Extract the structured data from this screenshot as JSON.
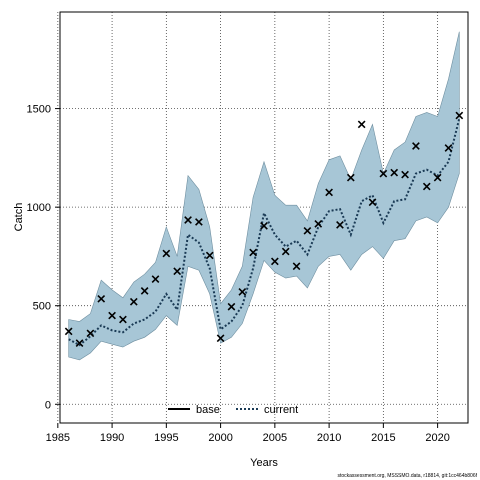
{
  "chart_data": {
    "type": "line",
    "xlabel": "Years",
    "ylabel": "Catch",
    "xlim": [
      1985.2,
      2022.8
    ],
    "ylim": [
      -95,
      1990
    ],
    "xticks": [
      1985,
      1990,
      1995,
      2000,
      2005,
      2010,
      2015,
      2020
    ],
    "yticks": [
      0,
      500,
      1000,
      1500
    ],
    "grid": true,
    "legend_position": "bottom",
    "colors": {
      "band": "#a7c6d6",
      "band_edge": "#6f8fa0",
      "current": "#1a3a55",
      "marker": "#000000"
    },
    "years": [
      1986,
      1987,
      1988,
      1989,
      1990,
      1991,
      1992,
      1993,
      1994,
      1995,
      1996,
      1997,
      1998,
      1999,
      2000,
      2001,
      2002,
      2003,
      2004,
      2005,
      2006,
      2007,
      2008,
      2009,
      2010,
      2011,
      2012,
      2013,
      2014,
      2015,
      2016,
      2017,
      2018,
      2019,
      2020,
      2021,
      2022
    ],
    "series": [
      {
        "name": "base",
        "style": "solid",
        "values": [
          330,
          300,
          345,
          400,
          375,
          365,
          410,
          430,
          470,
          560,
          480,
          860,
          820,
          690,
          380,
          420,
          500,
          690,
          870,
          760,
          730,
          730,
          650,
          820,
          890,
          920,
          850,
          930,
          1000,
          870,
          1010,
          1020,
          1140,
          1130,
          1060,
          1150,
          1450
        ]
      },
      {
        "name": "current",
        "style": "dotted",
        "values": [
          330,
          300,
          345,
          400,
          375,
          365,
          410,
          430,
          470,
          560,
          480,
          860,
          820,
          690,
          380,
          420,
          500,
          690,
          970,
          860,
          800,
          830,
          760,
          900,
          980,
          990,
          860,
          1030,
          1060,
          920,
          1030,
          1040,
          1170,
          1190,
          1160,
          1230,
          1450
        ]
      }
    ],
    "band_upper": [
      430,
      420,
      460,
      630,
      580,
      540,
      620,
      660,
      720,
      900,
      750,
      1160,
      1090,
      900,
      510,
      580,
      700,
      1050,
      1230,
      1060,
      1010,
      1010,
      930,
      1120,
      1240,
      1260,
      1140,
      1290,
      1420,
      1170,
      1290,
      1330,
      1460,
      1480,
      1460,
      1650,
      1890
    ],
    "band_lower": [
      240,
      225,
      260,
      320,
      305,
      290,
      320,
      340,
      380,
      450,
      400,
      700,
      680,
      560,
      310,
      340,
      410,
      560,
      730,
      670,
      640,
      650,
      590,
      700,
      750,
      760,
      680,
      760,
      800,
      740,
      830,
      840,
      930,
      950,
      920,
      1000,
      1170
    ],
    "observed": [
      370,
      310,
      360,
      535,
      450,
      430,
      520,
      575,
      635,
      765,
      675,
      935,
      925,
      755,
      335,
      495,
      570,
      770,
      905,
      725,
      775,
      700,
      880,
      915,
      1075,
      910,
      1150,
      1420,
      1025,
      1170,
      1175,
      1165,
      1310,
      1105,
      1150,
      1300,
      1465
    ],
    "legend": [
      {
        "label": "base",
        "style": "solid"
      },
      {
        "label": "current",
        "style": "dotted"
      }
    ],
    "footnote": "stockassessment.org, MSSSMO.data, r18814, git:1cc464b806f"
  }
}
